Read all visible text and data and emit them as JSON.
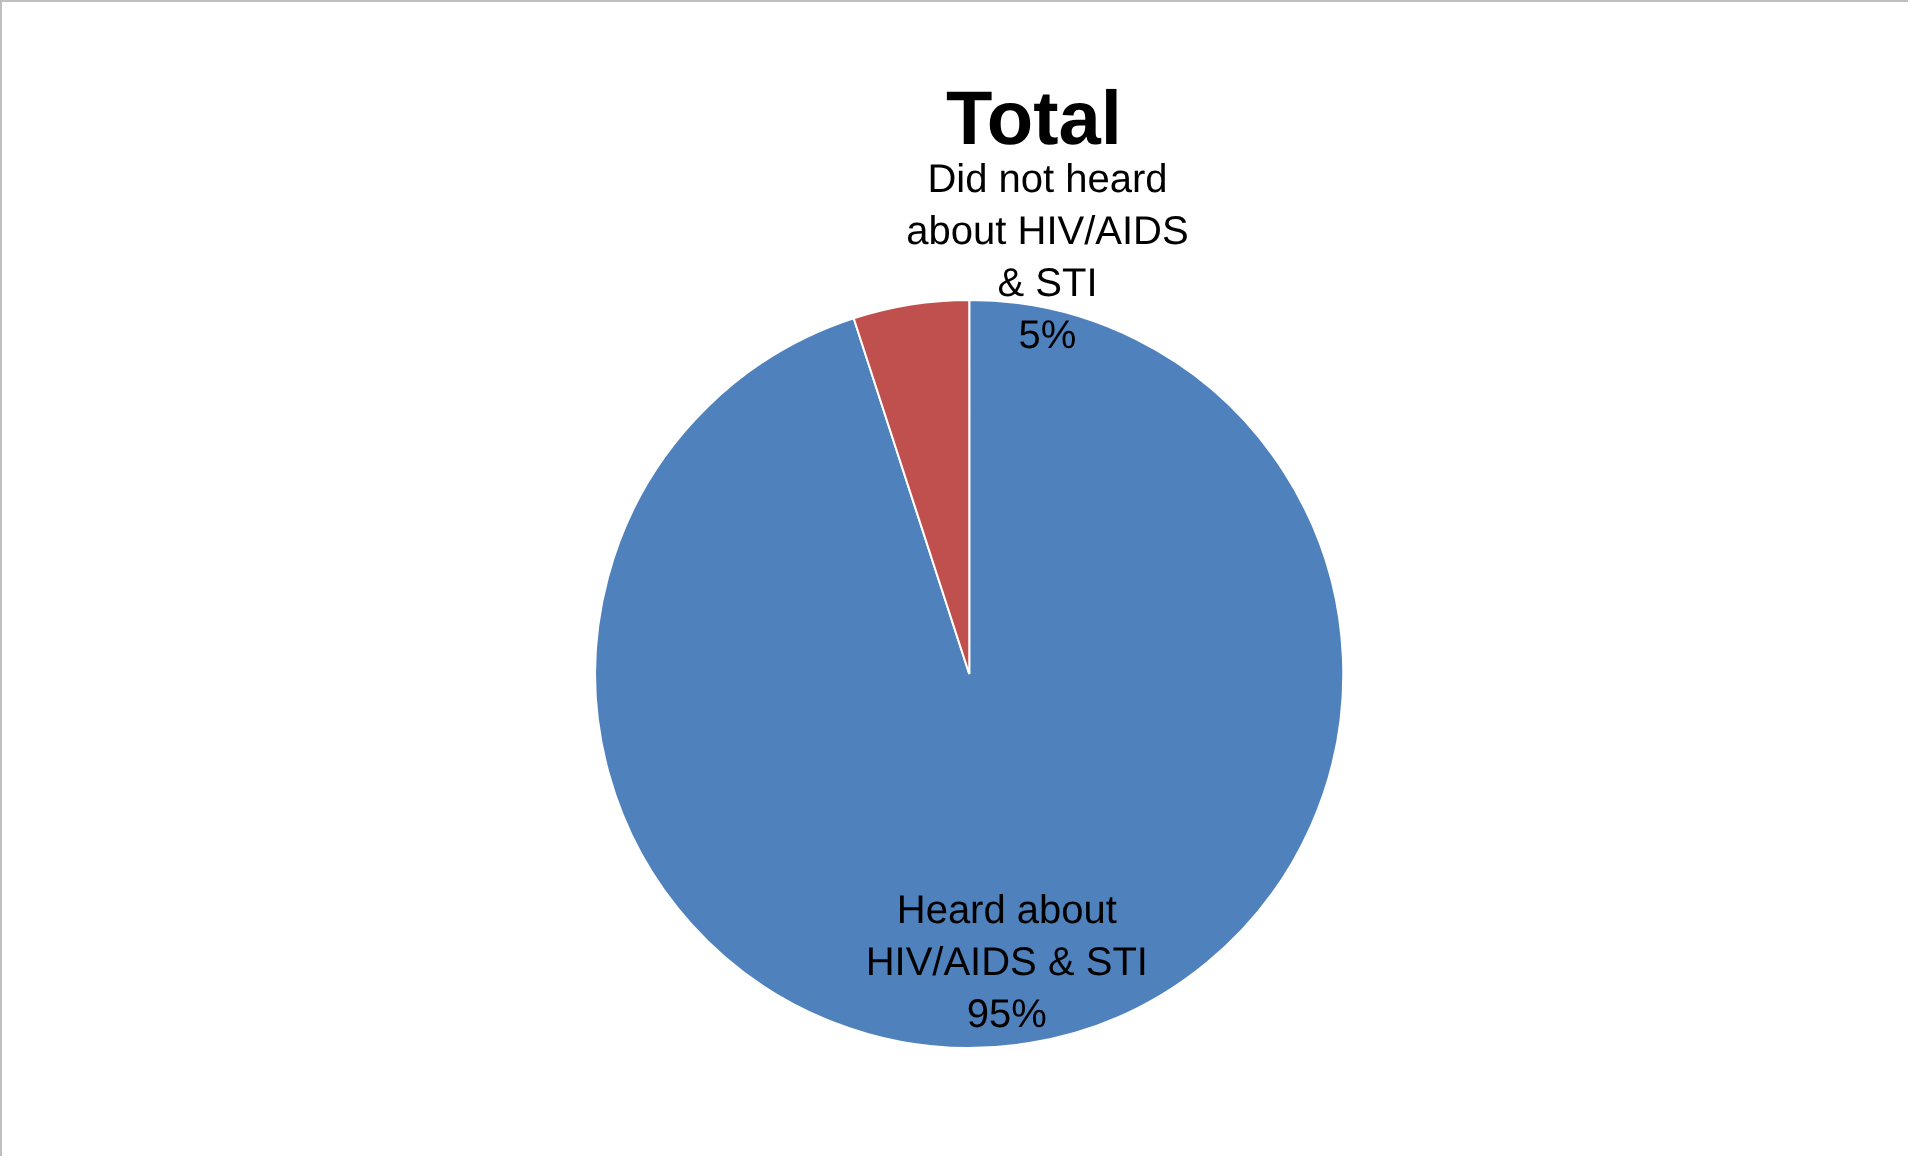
{
  "chart_data": {
    "type": "pie",
    "title": "Total",
    "categories": [
      "Heard about HIV/AIDS & STI",
      "Did not heard about HIV/AIDS & STI"
    ],
    "values": [
      95,
      5
    ],
    "colors": [
      "#4f81bd",
      "#c0504d"
    ],
    "value_labels": [
      "95%",
      "5%"
    ],
    "legend": false
  }
}
